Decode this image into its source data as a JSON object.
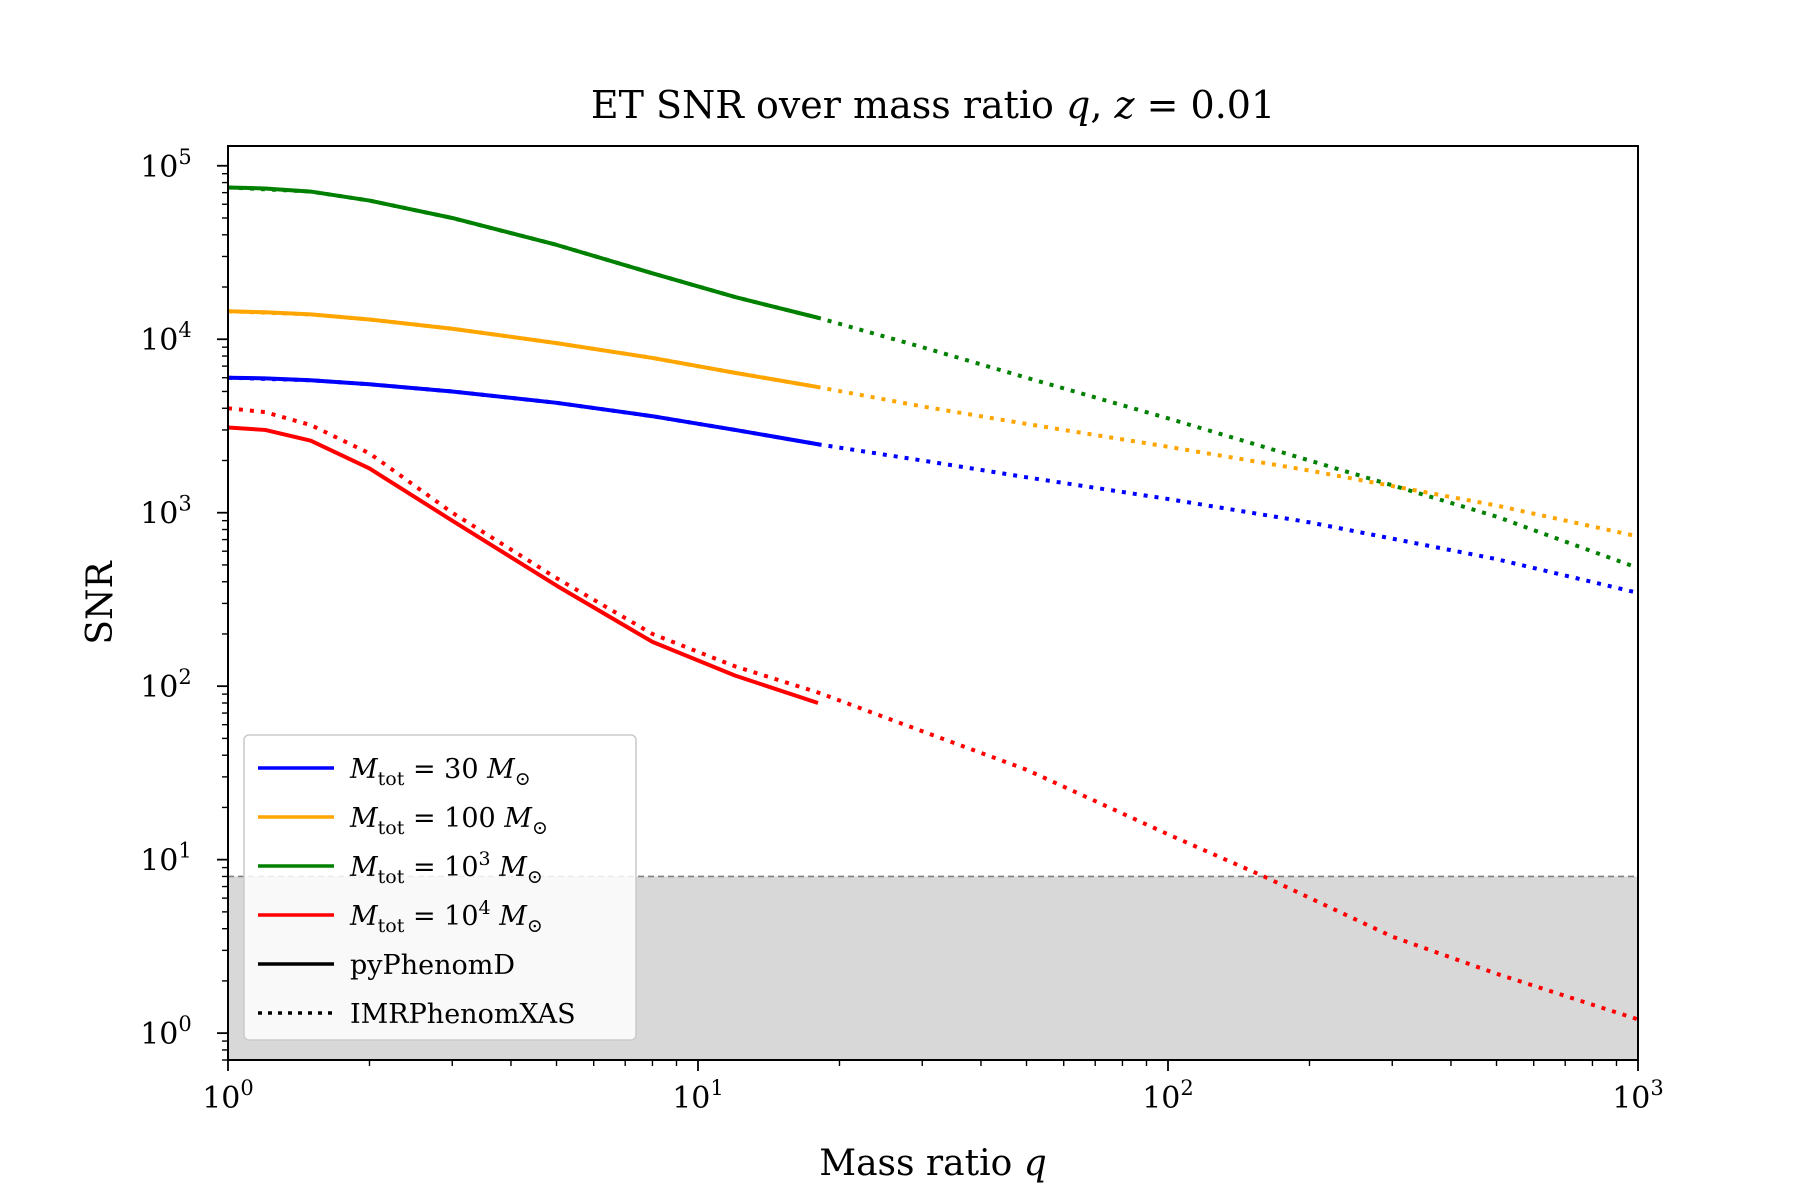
{
  "chart_data": {
    "type": "line",
    "title": "ET SNR over mass ratio q, z = 0.01",
    "xlabel": "Mass ratio q",
    "ylabel": "SNR",
    "xscale": "log",
    "yscale": "log",
    "xlim": [
      1,
      1000
    ],
    "ylim": [
      0.7,
      130000
    ],
    "x_ticks": [
      {
        "value": 1,
        "base": "10",
        "exp": "0"
      },
      {
        "value": 10,
        "base": "10",
        "exp": "1"
      },
      {
        "value": 100,
        "base": "10",
        "exp": "2"
      },
      {
        "value": 1000,
        "base": "10",
        "exp": "3"
      }
    ],
    "y_ticks": [
      {
        "value": 1,
        "base": "10",
        "exp": "0"
      },
      {
        "value": 10,
        "base": "10",
        "exp": "1"
      },
      {
        "value": 100,
        "base": "10",
        "exp": "2"
      },
      {
        "value": 1000,
        "base": "10",
        "exp": "3"
      },
      {
        "value": 10000,
        "base": "10",
        "exp": "4"
      },
      {
        "value": 100000,
        "base": "10",
        "exp": "5"
      }
    ],
    "threshold": {
      "snr": 8,
      "shaded_below": true,
      "line_style": "dashed",
      "color": "#808080",
      "fill": "#d8d8d8"
    },
    "legend_position": "lower-left",
    "legend": [
      {
        "label": "M_tot = 30 M_⊙",
        "color": "#0000ff",
        "style": "solid"
      },
      {
        "label": "M_tot = 100 M_⊙",
        "color": "#ffa500",
        "style": "solid"
      },
      {
        "label": "M_tot = 10^3 M_⊙",
        "color": "#008000",
        "style": "solid"
      },
      {
        "label": "M_tot = 10^4 M_⊙",
        "color": "#ff0000",
        "style": "solid"
      },
      {
        "label": "pyPhenomD",
        "color": "#000000",
        "style": "solid"
      },
      {
        "label": "IMRPhenomXAS",
        "color": "#000000",
        "style": "dotted"
      }
    ],
    "legend_display": [
      {
        "main": "M",
        "sub": "tot",
        "eq": " = 30 ",
        "base": null,
        "exp": null,
        "unit": "M",
        "unit_sub": "⊙"
      },
      {
        "main": "M",
        "sub": "tot",
        "eq": " = 100 ",
        "base": null,
        "exp": null,
        "unit": "M",
        "unit_sub": "⊙"
      },
      {
        "main": "M",
        "sub": "tot",
        "eq": " = ",
        "base": "10",
        "exp": "3",
        "unit": "M",
        "unit_sub": "⊙"
      },
      {
        "main": "M",
        "sub": "tot",
        "eq": " = ",
        "base": "10",
        "exp": "4",
        "unit": "M",
        "unit_sub": "⊙"
      }
    ],
    "series": [
      {
        "mass": "30",
        "color": "#0000ff",
        "pyPhenomD": {
          "x": [
            1,
            1.2,
            1.5,
            2,
            3,
            5,
            8,
            12,
            18
          ],
          "y": [
            6000,
            5950,
            5800,
            5500,
            5000,
            4300,
            3600,
            3000,
            2480
          ]
        },
        "IMRPhenomXAS": {
          "x": [
            1,
            1.5,
            2,
            3,
            5,
            8,
            12,
            18,
            30,
            50,
            100,
            200,
            500,
            1000
          ],
          "y": [
            6000,
            5800,
            5500,
            5000,
            4300,
            3600,
            3000,
            2480,
            2000,
            1600,
            1200,
            880,
            540,
            345
          ]
        }
      },
      {
        "mass": "100",
        "color": "#ffa500",
        "pyPhenomD": {
          "x": [
            1,
            1.2,
            1.5,
            2,
            3,
            5,
            8,
            12,
            18
          ],
          "y": [
            14500,
            14300,
            13900,
            13000,
            11500,
            9500,
            7800,
            6400,
            5300
          ]
        },
        "IMRPhenomXAS": {
          "x": [
            1,
            1.5,
            2,
            3,
            5,
            8,
            12,
            18,
            30,
            50,
            100,
            200,
            500,
            1000
          ],
          "y": [
            14500,
            13900,
            13000,
            11500,
            9500,
            7800,
            6400,
            5300,
            4100,
            3250,
            2400,
            1750,
            1100,
            730
          ]
        }
      },
      {
        "mass": "10^3",
        "color": "#008000",
        "pyPhenomD": {
          "x": [
            1,
            1.2,
            1.5,
            2,
            3,
            5,
            8,
            12,
            18
          ],
          "y": [
            75000,
            74000,
            71000,
            63000,
            50000,
            35000,
            24000,
            17500,
            13300
          ]
        },
        "IMRPhenomXAS": {
          "x": [
            1,
            1.5,
            2,
            3,
            5,
            8,
            12,
            18,
            30,
            50,
            100,
            200,
            500,
            1000
          ],
          "y": [
            75000,
            71000,
            63000,
            50000,
            35000,
            24000,
            17500,
            13300,
            9000,
            6000,
            3500,
            2000,
            950,
            480
          ]
        }
      },
      {
        "mass": "10^4",
        "color": "#ff0000",
        "pyPhenomD": {
          "x": [
            1,
            1.2,
            1.5,
            2,
            3,
            5,
            8,
            12,
            18
          ],
          "y": [
            3100,
            3000,
            2600,
            1800,
            900,
            380,
            180,
            115,
            80
          ]
        },
        "IMRPhenomXAS": {
          "x": [
            1,
            1.2,
            1.5,
            2,
            3,
            5,
            8,
            12,
            18,
            30,
            50,
            100,
            160,
            300,
            500,
            1000
          ],
          "y": [
            4000,
            3800,
            3200,
            2200,
            1000,
            420,
            200,
            130,
            92,
            55,
            33,
            14,
            8,
            3.6,
            2.2,
            1.2
          ]
        }
      }
    ]
  }
}
